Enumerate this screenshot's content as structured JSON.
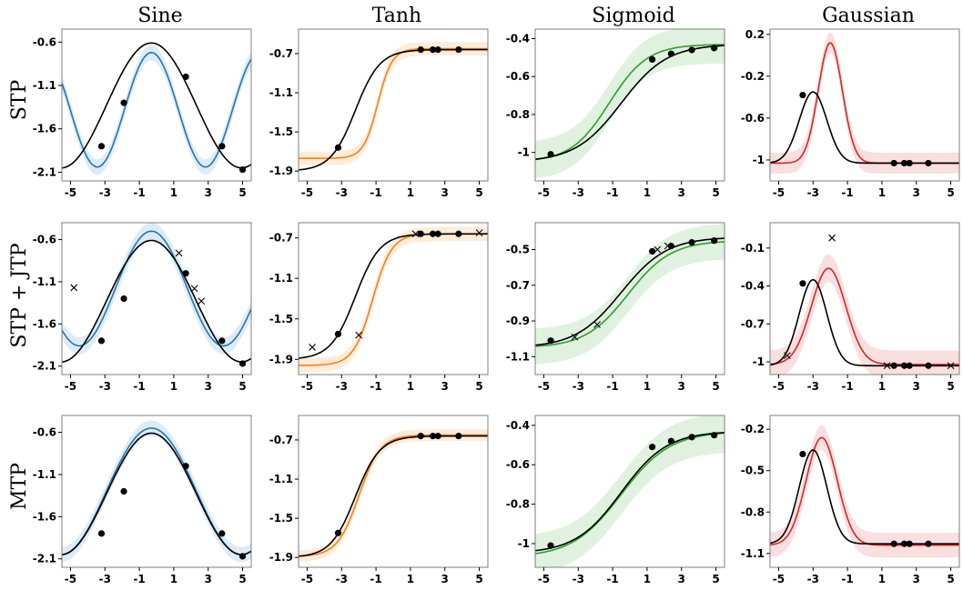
{
  "figure": {
    "columns": [
      "Sine",
      "Tanh",
      "Sigmoid",
      "Gaussian"
    ],
    "rows": [
      "STP",
      "STP + JTP",
      "MTP"
    ]
  },
  "colors": {
    "Sine": "#1f77b4",
    "Tanh": "#ff7f0e",
    "Sigmoid": "#2ca02c",
    "Gaussian": "#d62728",
    "truth": "#000000"
  },
  "chart_data": [
    {
      "type": "line",
      "row": "STP",
      "column": "Sine",
      "xlim": [
        -5.5,
        5.5
      ],
      "ylim": [
        -2.2,
        -0.45
      ],
      "xticks": [
        "-5",
        "-3",
        "-1",
        "1",
        "3",
        "5"
      ],
      "yticks": [
        -0.6,
        -1.1,
        -1.6,
        -2.1
      ],
      "truth_points": [
        [
          -3.2,
          -1.8
        ],
        [
          -1.9,
          -1.3
        ],
        [
          1.7,
          -1.0
        ],
        [
          3.8,
          -1.8
        ],
        [
          5,
          -2.07
        ]
      ],
      "query_points": []
    },
    {
      "type": "line",
      "row": "STP",
      "column": "Tanh",
      "xlim": [
        -5.5,
        5.5
      ],
      "ylim": [
        -2.0,
        -0.45
      ],
      "xticks": [
        "-5",
        "-3",
        "-1",
        "1",
        "3",
        "5"
      ],
      "yticks": [
        -0.7,
        -1.1,
        -1.5,
        -1.9
      ],
      "truth_points": [
        [
          -3.2,
          -1.66
        ],
        [
          1.6,
          -0.66
        ],
        [
          2.3,
          -0.66
        ],
        [
          2.6,
          -0.66
        ],
        [
          3.8,
          -0.66
        ]
      ],
      "query_points": []
    },
    {
      "type": "line",
      "row": "STP",
      "column": "Sigmoid",
      "xlim": [
        -5.5,
        5.5
      ],
      "ylim": [
        -1.15,
        -0.35
      ],
      "xticks": [
        "-5",
        "-3",
        "-1",
        "1",
        "3",
        "5"
      ],
      "yticks": [
        -0.4,
        -0.6,
        -0.8,
        -1.0
      ],
      "truth_points": [
        [
          -4.6,
          -1.01
        ],
        [
          1.3,
          -0.51
        ],
        [
          2.4,
          -0.48
        ],
        [
          3.6,
          -0.46
        ],
        [
          4.9,
          -0.45
        ]
      ],
      "query_points": []
    },
    {
      "type": "line",
      "row": "STP",
      "column": "Gaussian",
      "xlim": [
        -5.5,
        5.5
      ],
      "ylim": [
        -1.2,
        0.25
      ],
      "xticks": [
        "-5",
        "-3",
        "-1",
        "1",
        "3",
        "5"
      ],
      "yticks": [
        0.2,
        -0.2,
        -0.6,
        -1.0
      ],
      "truth_points": [
        [
          -3.6,
          -0.38
        ],
        [
          1.7,
          -1.03
        ],
        [
          2.3,
          -1.03
        ],
        [
          2.6,
          -1.03
        ],
        [
          3.7,
          -1.03
        ]
      ],
      "query_points": []
    },
    {
      "type": "line",
      "row": "STP + JTP",
      "column": "Sine",
      "xlim": [
        -5.5,
        5.5
      ],
      "ylim": [
        -2.2,
        -0.4
      ],
      "xticks": [
        "-5",
        "-3",
        "-1",
        "1",
        "3",
        "5"
      ],
      "yticks": [
        -0.6,
        -1.1,
        -1.6,
        -2.1
      ],
      "truth_points": [
        [
          -3.2,
          -1.8
        ],
        [
          -1.9,
          -1.3
        ],
        [
          1.7,
          -1.0
        ],
        [
          3.8,
          -1.8
        ],
        [
          5,
          -2.07
        ]
      ],
      "query_points": [
        [
          -4.8,
          -1.17
        ],
        [
          1.3,
          -0.76
        ],
        [
          2.2,
          -1.18
        ],
        [
          2.6,
          -1.33
        ]
      ]
    },
    {
      "type": "line",
      "row": "STP + JTP",
      "column": "Tanh",
      "xlim": [
        -5.5,
        5.5
      ],
      "ylim": [
        -2.05,
        -0.55
      ],
      "xticks": [
        "-5",
        "-3",
        "-1",
        "1",
        "3",
        "5"
      ],
      "yticks": [
        -0.7,
        -1.1,
        -1.5,
        -1.9
      ],
      "truth_points": [
        [
          -3.2,
          -1.65
        ],
        [
          1.6,
          -0.66
        ],
        [
          2.3,
          -0.66
        ],
        [
          2.6,
          -0.66
        ],
        [
          3.8,
          -0.66
        ]
      ],
      "query_points": [
        [
          -4.7,
          -1.78
        ],
        [
          -2.0,
          -1.66
        ],
        [
          1.3,
          -0.66
        ],
        [
          5.0,
          -0.65
        ]
      ]
    },
    {
      "type": "line",
      "row": "STP + JTP",
      "column": "Sigmoid",
      "xlim": [
        -5.5,
        5.5
      ],
      "ylim": [
        -1.2,
        -0.35
      ],
      "xticks": [
        "-5",
        "-3",
        "-1",
        "1",
        "3",
        "5"
      ],
      "yticks": [
        -0.5,
        -0.7,
        -0.9,
        -1.1
      ],
      "truth_points": [
        [
          -4.6,
          -1.01
        ],
        [
          1.3,
          -0.51
        ],
        [
          2.4,
          -0.48
        ],
        [
          3.6,
          -0.46
        ],
        [
          4.9,
          -0.45
        ]
      ],
      "query_points": [
        [
          -3.2,
          -0.99
        ],
        [
          -1.9,
          -0.92
        ],
        [
          1.6,
          -0.5
        ],
        [
          2.2,
          -0.48
        ]
      ]
    },
    {
      "type": "line",
      "row": "STP + JTP",
      "column": "Gaussian",
      "xlim": [
        -5.5,
        5.5
      ],
      "ylim": [
        -1.1,
        0.1
      ],
      "xticks": [
        "-5",
        "-3",
        "-1",
        "1",
        "3",
        "5"
      ],
      "yticks": [
        -0.1,
        -0.4,
        -0.7,
        -1.0
      ],
      "truth_points": [
        [
          -3.6,
          -0.38
        ],
        [
          1.7,
          -1.03
        ],
        [
          2.3,
          -1.03
        ],
        [
          2.6,
          -1.03
        ],
        [
          3.7,
          -1.03
        ]
      ],
      "query_points": [
        [
          -4.5,
          -0.95
        ],
        [
          -1.9,
          -0.02
        ],
        [
          1.3,
          -1.03
        ],
        [
          5.0,
          -1.03
        ]
      ]
    },
    {
      "type": "line",
      "row": "MTP",
      "column": "Sine",
      "xlim": [
        -5.5,
        5.5
      ],
      "ylim": [
        -2.2,
        -0.4
      ],
      "xticks": [
        "-5",
        "-3",
        "-1",
        "1",
        "3",
        "5"
      ],
      "yticks": [
        -0.6,
        -1.1,
        -1.6,
        -2.1
      ],
      "truth_points": [
        [
          -3.2,
          -1.8
        ],
        [
          -1.9,
          -1.3
        ],
        [
          1.7,
          -1.0
        ],
        [
          3.8,
          -1.8
        ],
        [
          5,
          -2.07
        ]
      ],
      "query_points": []
    },
    {
      "type": "line",
      "row": "MTP",
      "column": "Tanh",
      "xlim": [
        -5.5,
        5.5
      ],
      "ylim": [
        -2.0,
        -0.45
      ],
      "xticks": [
        "-5",
        "-3",
        "-1",
        "1",
        "3",
        "5"
      ],
      "yticks": [
        -0.7,
        -1.1,
        -1.5,
        -1.9
      ],
      "truth_points": [
        [
          -3.2,
          -1.65
        ],
        [
          1.6,
          -0.66
        ],
        [
          2.3,
          -0.66
        ],
        [
          2.6,
          -0.66
        ],
        [
          3.8,
          -0.66
        ]
      ],
      "query_points": []
    },
    {
      "type": "line",
      "row": "MTP",
      "column": "Sigmoid",
      "xlim": [
        -5.5,
        5.5
      ],
      "ylim": [
        -1.12,
        -0.35
      ],
      "xticks": [
        "-5",
        "-3",
        "-1",
        "1",
        "3",
        "5"
      ],
      "yticks": [
        -0.4,
        -0.6,
        -0.8,
        -1.0
      ],
      "truth_points": [
        [
          -4.6,
          -1.01
        ],
        [
          1.3,
          -0.51
        ],
        [
          2.4,
          -0.48
        ],
        [
          3.6,
          -0.46
        ],
        [
          4.9,
          -0.45
        ]
      ],
      "query_points": []
    },
    {
      "type": "line",
      "row": "MTP",
      "column": "Gaussian",
      "xlim": [
        -5.5,
        5.5
      ],
      "ylim": [
        -1.2,
        -0.1
      ],
      "xticks": [
        "-5",
        "-3",
        "-1",
        "1",
        "3",
        "5"
      ],
      "yticks": [
        -0.2,
        -0.5,
        -0.8,
        -1.1
      ],
      "truth_points": [
        [
          -3.6,
          -0.38
        ],
        [
          1.7,
          -1.03
        ],
        [
          2.3,
          -1.03
        ],
        [
          2.6,
          -1.03
        ],
        [
          3.7,
          -1.03
        ]
      ],
      "query_points": []
    }
  ]
}
